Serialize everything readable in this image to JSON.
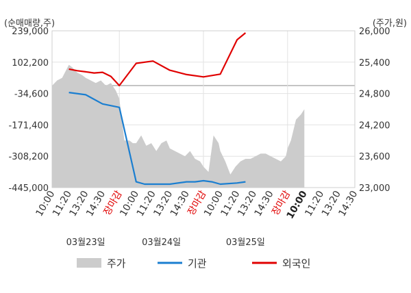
{
  "chart_data": {
    "type": "line",
    "left_axis_unit": "(순매매량,주)",
    "right_axis_unit": "(주가,원)",
    "left_ticks": [
      "239,000",
      "102,200",
      "-34,600",
      "-171,400",
      "-308,200",
      "-445,000"
    ],
    "right_ticks": [
      "26,000",
      "25,400",
      "24,800",
      "24,200",
      "23,600",
      "23,000"
    ],
    "ylim_left": [
      -445000,
      239000
    ],
    "ylim_right": [
      23000,
      26000
    ],
    "x_ticks": [
      {
        "label": "10:00",
        "kind": "normal"
      },
      {
        "label": "11:20",
        "kind": "normal"
      },
      {
        "label": "13:20",
        "kind": "normal"
      },
      {
        "label": "14:30",
        "kind": "normal"
      },
      {
        "label": "장마감",
        "kind": "close"
      },
      {
        "label": "10:00",
        "kind": "normal"
      },
      {
        "label": "11:20",
        "kind": "normal"
      },
      {
        "label": "13:20",
        "kind": "normal"
      },
      {
        "label": "14:30",
        "kind": "normal"
      },
      {
        "label": "장마감",
        "kind": "close"
      },
      {
        "label": "10:00",
        "kind": "normal"
      },
      {
        "label": "11:20",
        "kind": "normal"
      },
      {
        "label": "13:20",
        "kind": "normal"
      },
      {
        "label": "14:30",
        "kind": "normal"
      },
      {
        "label": "장마감",
        "kind": "close"
      },
      {
        "label": "10:00",
        "kind": "latest"
      },
      {
        "label": "11:20",
        "kind": "normal"
      },
      {
        "label": "13:20",
        "kind": "normal"
      },
      {
        "label": "14:30",
        "kind": "normal"
      }
    ],
    "dates": [
      "03월23일",
      "03월24일",
      "03월25일"
    ],
    "series": [
      {
        "name": "주가",
        "kind": "area",
        "axis": "right",
        "color": "#cccccc",
        "x": [
          0,
          0.3,
          0.6,
          1.0,
          1.2,
          1.5,
          1.8,
          2.0,
          2.3,
          2.6,
          2.9,
          3.2,
          3.5,
          3.8,
          4.0,
          4.3,
          4.6,
          4.8,
          5.0,
          5.3,
          5.6,
          5.9,
          6.2,
          6.5,
          6.8,
          7.0,
          7.3,
          7.6,
          7.9,
          8.2,
          8.5,
          8.8,
          9.0,
          9.3,
          9.6,
          9.9,
          10.0,
          10.3,
          10.6,
          10.9,
          11.2,
          11.5,
          11.8,
          12.1,
          12.4,
          12.7,
          13.0,
          13.3,
          13.6,
          13.9,
          14.0,
          14.2,
          14.5,
          14.8,
          15.0
        ],
        "y": [
          24950,
          25050,
          25100,
          25350,
          25300,
          25200,
          25150,
          25100,
          25050,
          25000,
          25050,
          24950,
          25000,
          24850,
          24700,
          23900,
          23900,
          23850,
          23850,
          24000,
          23800,
          23850,
          23700,
          23850,
          23900,
          23750,
          23700,
          23650,
          23600,
          23700,
          23550,
          23500,
          23400,
          23300,
          24000,
          23850,
          23700,
          23500,
          23250,
          23400,
          23500,
          23550,
          23550,
          23600,
          23650,
          23650,
          23600,
          23550,
          23500,
          23600,
          23750,
          23900,
          24300,
          24400,
          24500
        ]
      },
      {
        "name": "기관",
        "kind": "line",
        "axis": "left",
        "color": "#1a7ed0",
        "x": [
          1.0,
          2.0,
          3.0,
          4.0,
          5.0,
          5.5,
          6.5,
          7.0,
          8.0,
          8.5,
          9.0,
          9.5,
          10.0,
          11.0,
          11.5
        ],
        "y": [
          -30000,
          -40000,
          -80000,
          -95000,
          -420000,
          -430000,
          -430000,
          -430000,
          -420000,
          -420000,
          -415000,
          -420000,
          -430000,
          -425000,
          -420000
        ]
      },
      {
        "name": "외국인",
        "kind": "line",
        "axis": "left",
        "color": "#e00000",
        "x": [
          1.0,
          1.5,
          2.0,
          2.5,
          3.0,
          3.5,
          4.0,
          5.0,
          6.0,
          7.0,
          8.0,
          9.0,
          10.0,
          11.0,
          11.5
        ],
        "y": [
          72000,
          65000,
          60000,
          55000,
          58000,
          40000,
          0,
          97000,
          107000,
          67000,
          48000,
          38000,
          50000,
          200000,
          230000
        ]
      }
    ],
    "legend": [
      "주가",
      "기관",
      "외국인"
    ],
    "legend_position": "bottom",
    "grid": true
  }
}
